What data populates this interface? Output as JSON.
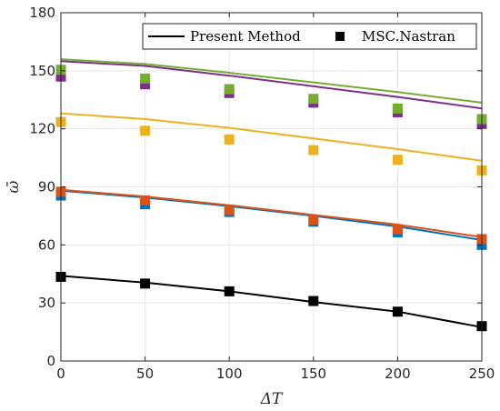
{
  "chart_data": {
    "type": "line",
    "xlabel": "ΔT",
    "ylabel": "ω̄",
    "xlim": [
      0,
      250
    ],
    "ylim": [
      0,
      180
    ],
    "xticks": [
      0,
      50,
      100,
      150,
      200,
      250
    ],
    "yticks": [
      0,
      30,
      60,
      90,
      120,
      150,
      180
    ],
    "xtick_labels": [
      "0",
      "50",
      "100",
      "150",
      "200",
      "250"
    ],
    "ytick_labels": [
      "0",
      "30",
      "60",
      "90",
      "120",
      "150",
      "180"
    ],
    "grid": true,
    "legend": {
      "placement": "top-right",
      "entries": [
        {
          "label": "Present Method",
          "style": "line",
          "color": "#000000"
        },
        {
          "label": "MSC.Nastran",
          "style": "marker",
          "color": "#000000"
        }
      ]
    },
    "x": [
      0,
      50,
      100,
      150,
      200,
      250
    ],
    "series": [
      {
        "color": "#000000",
        "line": [
          44,
          40.5,
          36,
          30.5,
          25.5,
          17.5
        ],
        "markers": [
          43.5,
          40,
          36,
          31,
          25.5,
          18
        ]
      },
      {
        "color": "#0072BD",
        "line": [
          88,
          84.5,
          80,
          75,
          69.5,
          62.5
        ],
        "markers": [
          85.5,
          81,
          77,
          72,
          66.5,
          60
        ]
      },
      {
        "color": "#D95319",
        "line": [
          88.5,
          85,
          80.5,
          75.5,
          70.5,
          64
        ],
        "markers": [
          87.5,
          83,
          78,
          73,
          68,
          63
        ]
      },
      {
        "color": "#EDB120",
        "line": [
          128,
          125,
          120.5,
          115,
          109.5,
          103.5
        ],
        "markers": [
          123.5,
          119,
          114.5,
          109,
          104,
          98.5
        ]
      },
      {
        "color": "#7E2F8E",
        "line": [
          155,
          152.5,
          147.5,
          142,
          136.5,
          130.5
        ],
        "markers": [
          147,
          143,
          138.5,
          133.5,
          128.5,
          122.5
        ]
      },
      {
        "color": "#77AC30",
        "line": [
          156,
          153.5,
          149,
          144,
          139,
          133.5
        ],
        "markers": [
          150.5,
          146,
          140.5,
          135.5,
          130.5,
          125
        ]
      }
    ]
  }
}
